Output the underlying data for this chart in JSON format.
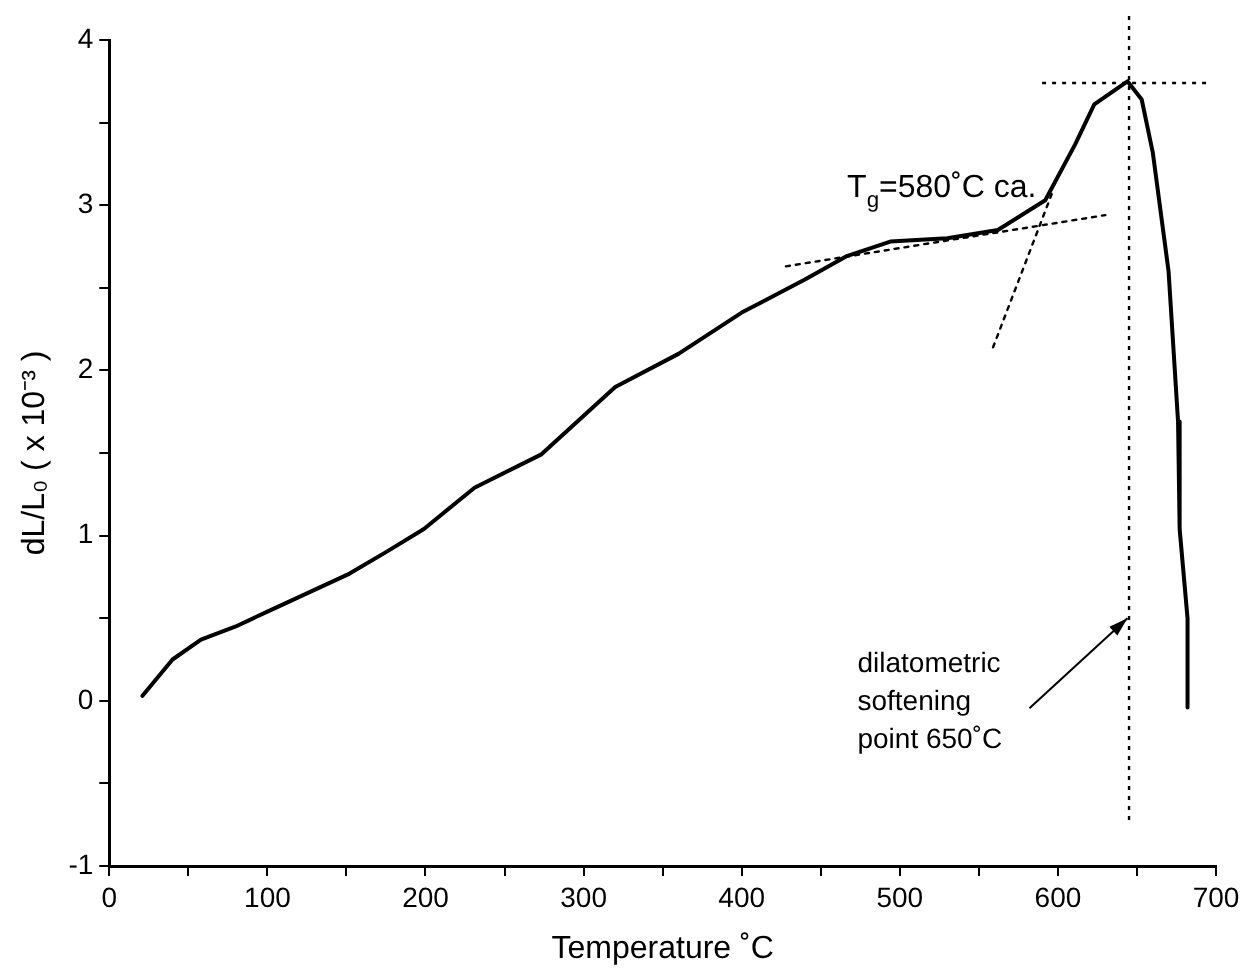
{
  "chart_data": {
    "type": "line",
    "xlabel": "Temperature ˚C",
    "ylabel": "dL/L₀ ( x 10⁻³ )",
    "xlim": [
      0,
      700
    ],
    "xticks": [
      0,
      {
        "value": 50,
        "label": null
      },
      100,
      {
        "value": 150,
        "label": null
      },
      200,
      {
        "value": 250,
        "label": null
      },
      300,
      {
        "value": 350,
        "label": null
      },
      400,
      {
        "value": 450,
        "label": null
      },
      500,
      {
        "value": 550,
        "label": null
      },
      600,
      {
        "value": 650,
        "label": null
      },
      700
    ],
    "ylim": [
      -1,
      4
    ],
    "yticks": [
      -1,
      {
        "value": -0.5,
        "label": null
      },
      0,
      {
        "value": 0.5,
        "label": null
      },
      1,
      {
        "value": 1.5,
        "label": null
      },
      2,
      {
        "value": 2.5,
        "label": null
      },
      3,
      {
        "value": 3.5,
        "label": null
      },
      4
    ],
    "grid": false,
    "legend": false,
    "marker": "none",
    "series": [
      {
        "color": "#000000",
        "line_style": "solid",
        "x": [
          21,
          40,
          58,
          80,
          100,
          125,
          152,
          175,
          199,
          231,
          273,
          320,
          360,
          400,
          440,
          466,
          494,
          530,
          562,
          592,
          611,
          623,
          644,
          653,
          660,
          670,
          676,
          677,
          682,
          682
        ],
        "values": [
          0.03,
          0.25,
          0.37,
          0.45,
          0.54,
          0.65,
          0.77,
          0.9,
          1.04,
          1.29,
          1.49,
          1.9,
          2.1,
          2.35,
          2.55,
          2.69,
          2.78,
          2.8,
          2.85,
          3.03,
          3.37,
          3.61,
          3.75,
          3.64,
          3.32,
          2.6,
          1.69,
          1.04,
          0.5,
          -0.04
        ]
      },
      {
        "color": "#000000",
        "line_style": "dotted",
        "x": [
          428,
          630
        ],
        "values": [
          2.63,
          2.94
        ]
      },
      {
        "color": "#000000",
        "line_style": "dotted",
        "x": [
          559,
          597
        ],
        "values": [
          2.14,
          3.09
        ]
      }
    ],
    "ref_lines": [
      {
        "axis": "x",
        "value": 645,
        "color": "#000000",
        "line_style": "dotted"
      },
      {
        "axis": "y",
        "value": 3.74,
        "color": "#000000",
        "line_style": "dotted"
      }
    ],
    "annotations": [
      {
        "text": "T$_{g}$=580˚C ca.",
        "x": 589,
        "y": 2.88
      },
      {
        "text": "dilatometric\nsoftening\npoint 650˚C",
        "x": 644,
        "y": 0.5
      }
    ]
  }
}
